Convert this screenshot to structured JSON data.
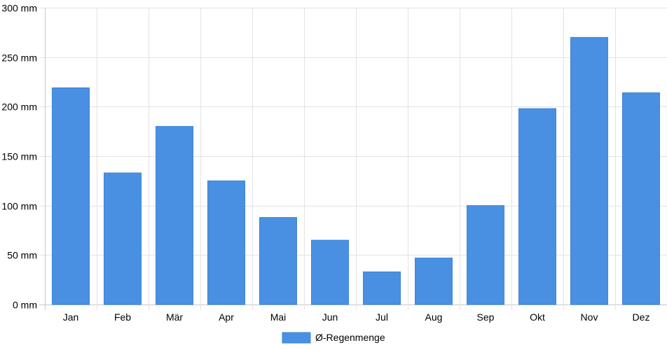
{
  "chart_data": {
    "type": "bar",
    "categories": [
      "Jan",
      "Feb",
      "Mär",
      "Apr",
      "Mai",
      "Jun",
      "Jul",
      "Aug",
      "Sep",
      "Okt",
      "Nov",
      "Dez"
    ],
    "series": [
      {
        "name": "Ø-Regenmenge",
        "values": [
          219,
          133,
          180,
          125,
          88,
          65,
          33,
          47,
          100,
          198,
          270,
          214
        ],
        "color": "#4a90e2"
      }
    ],
    "y_ticks": [
      "0 mm",
      "50 mm",
      "100 mm",
      "150 mm",
      "200 mm",
      "250 mm",
      "300 mm"
    ],
    "ylim": [
      0,
      300
    ],
    "y_step": 50,
    "grid": true,
    "legend_position": "bottom"
  }
}
